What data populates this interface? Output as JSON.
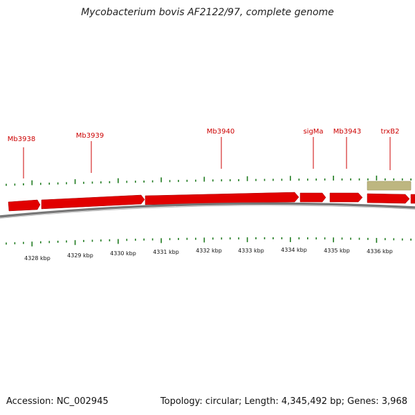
{
  "title": "Mycobacterium bovis AF2122/97, complete genome",
  "footer": {
    "accession": "Accession: NC_002945",
    "summary": "Topology: circular; Length: 4,345,492 bp; Genes: 3,968"
  },
  "colors": {
    "gene": "#e10000",
    "gene_label": "#cc0000",
    "tick": "#1e7a1e",
    "backbone": "#777777",
    "feature": "#bdb680"
  },
  "gene_labels": [
    {
      "name": "Mb3938"
    },
    {
      "name": "Mb3939"
    },
    {
      "name": "Mb3940"
    },
    {
      "name": "sigMa"
    },
    {
      "name": "Mb3943"
    },
    {
      "name": "trxB2"
    }
  ],
  "scale_labels": [
    "4328 kbp",
    "4329 kbp",
    "4330 kbp",
    "4331 kbp",
    "4332 kbp",
    "4333 kbp",
    "4334 kbp",
    "4335 kbp",
    "4336 kbp"
  ]
}
